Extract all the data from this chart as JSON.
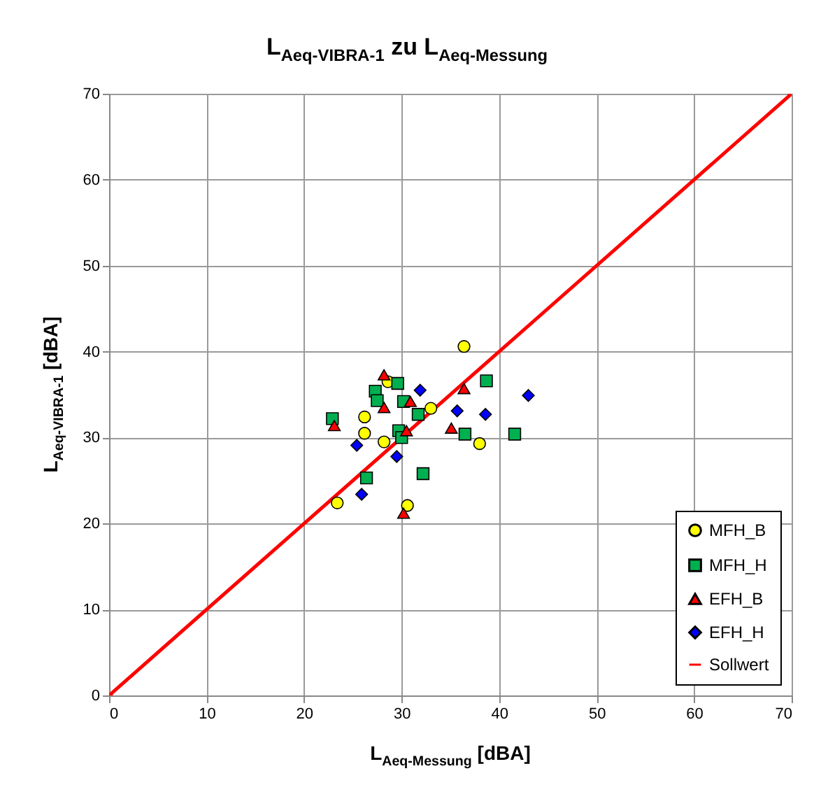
{
  "chart_data": {
    "type": "scatter",
    "title": "L$_{Aeq-VIBRA-1}$ zu L$_{Aeq-Messung}$",
    "xlabel": "L$_{Aeq-Messung}$ [dBA]",
    "ylabel": "L$_{Aeq-VIBRA-1}$ [dBA]",
    "xlim": [
      0,
      70
    ],
    "ylim": [
      0,
      70
    ],
    "xticks": [
      0,
      10,
      20,
      30,
      40,
      50,
      60,
      70
    ],
    "yticks": [
      0,
      10,
      20,
      30,
      40,
      50,
      60,
      70
    ],
    "grid": true,
    "legend": "bottom right",
    "series": [
      {
        "name": "MFH_B",
        "type": "scatter",
        "marker": "circle",
        "color": "#ffff00",
        "x": [
          36.4,
          33.0,
          26.2,
          26.2,
          28.2,
          38.0,
          23.4,
          30.6,
          28.6
        ],
        "values": [
          40.6,
          33.4,
          32.4,
          30.5,
          29.5,
          29.3,
          22.4,
          22.1,
          36.5
        ]
      },
      {
        "name": "MFH_H",
        "type": "scatter",
        "marker": "square",
        "color": "#00b050",
        "x": [
          29.6,
          27.3,
          27.5,
          30.2,
          31.7,
          38.7,
          22.9,
          29.7,
          30.0,
          36.5,
          41.6,
          32.2,
          26.4
        ],
        "values": [
          36.3,
          35.4,
          34.3,
          34.2,
          32.7,
          36.6,
          32.2,
          30.8,
          30.0,
          30.4,
          30.4,
          25.8,
          25.3
        ]
      },
      {
        "name": "EFH_B",
        "type": "scatter",
        "marker": "triangle",
        "color": "#ff0000",
        "x": [
          28.2,
          36.4,
          30.9,
          28.2,
          23.1,
          30.5,
          35.1,
          30.2
        ],
        "values": [
          37.3,
          35.7,
          34.2,
          33.5,
          31.4,
          30.8,
          31.1,
          21.2
        ]
      },
      {
        "name": "EFH_H",
        "type": "scatter",
        "marker": "diamond",
        "color": "#0000ff",
        "x": [
          31.9,
          43.0,
          35.7,
          38.6,
          25.4,
          29.5,
          25.9
        ],
        "values": [
          35.5,
          34.9,
          33.1,
          32.7,
          29.1,
          27.8,
          23.4
        ]
      },
      {
        "name": "Sollwert",
        "type": "line",
        "marker": "none",
        "color": "#ff0000",
        "x": [
          0,
          70
        ],
        "values": [
          0,
          70
        ]
      }
    ]
  }
}
